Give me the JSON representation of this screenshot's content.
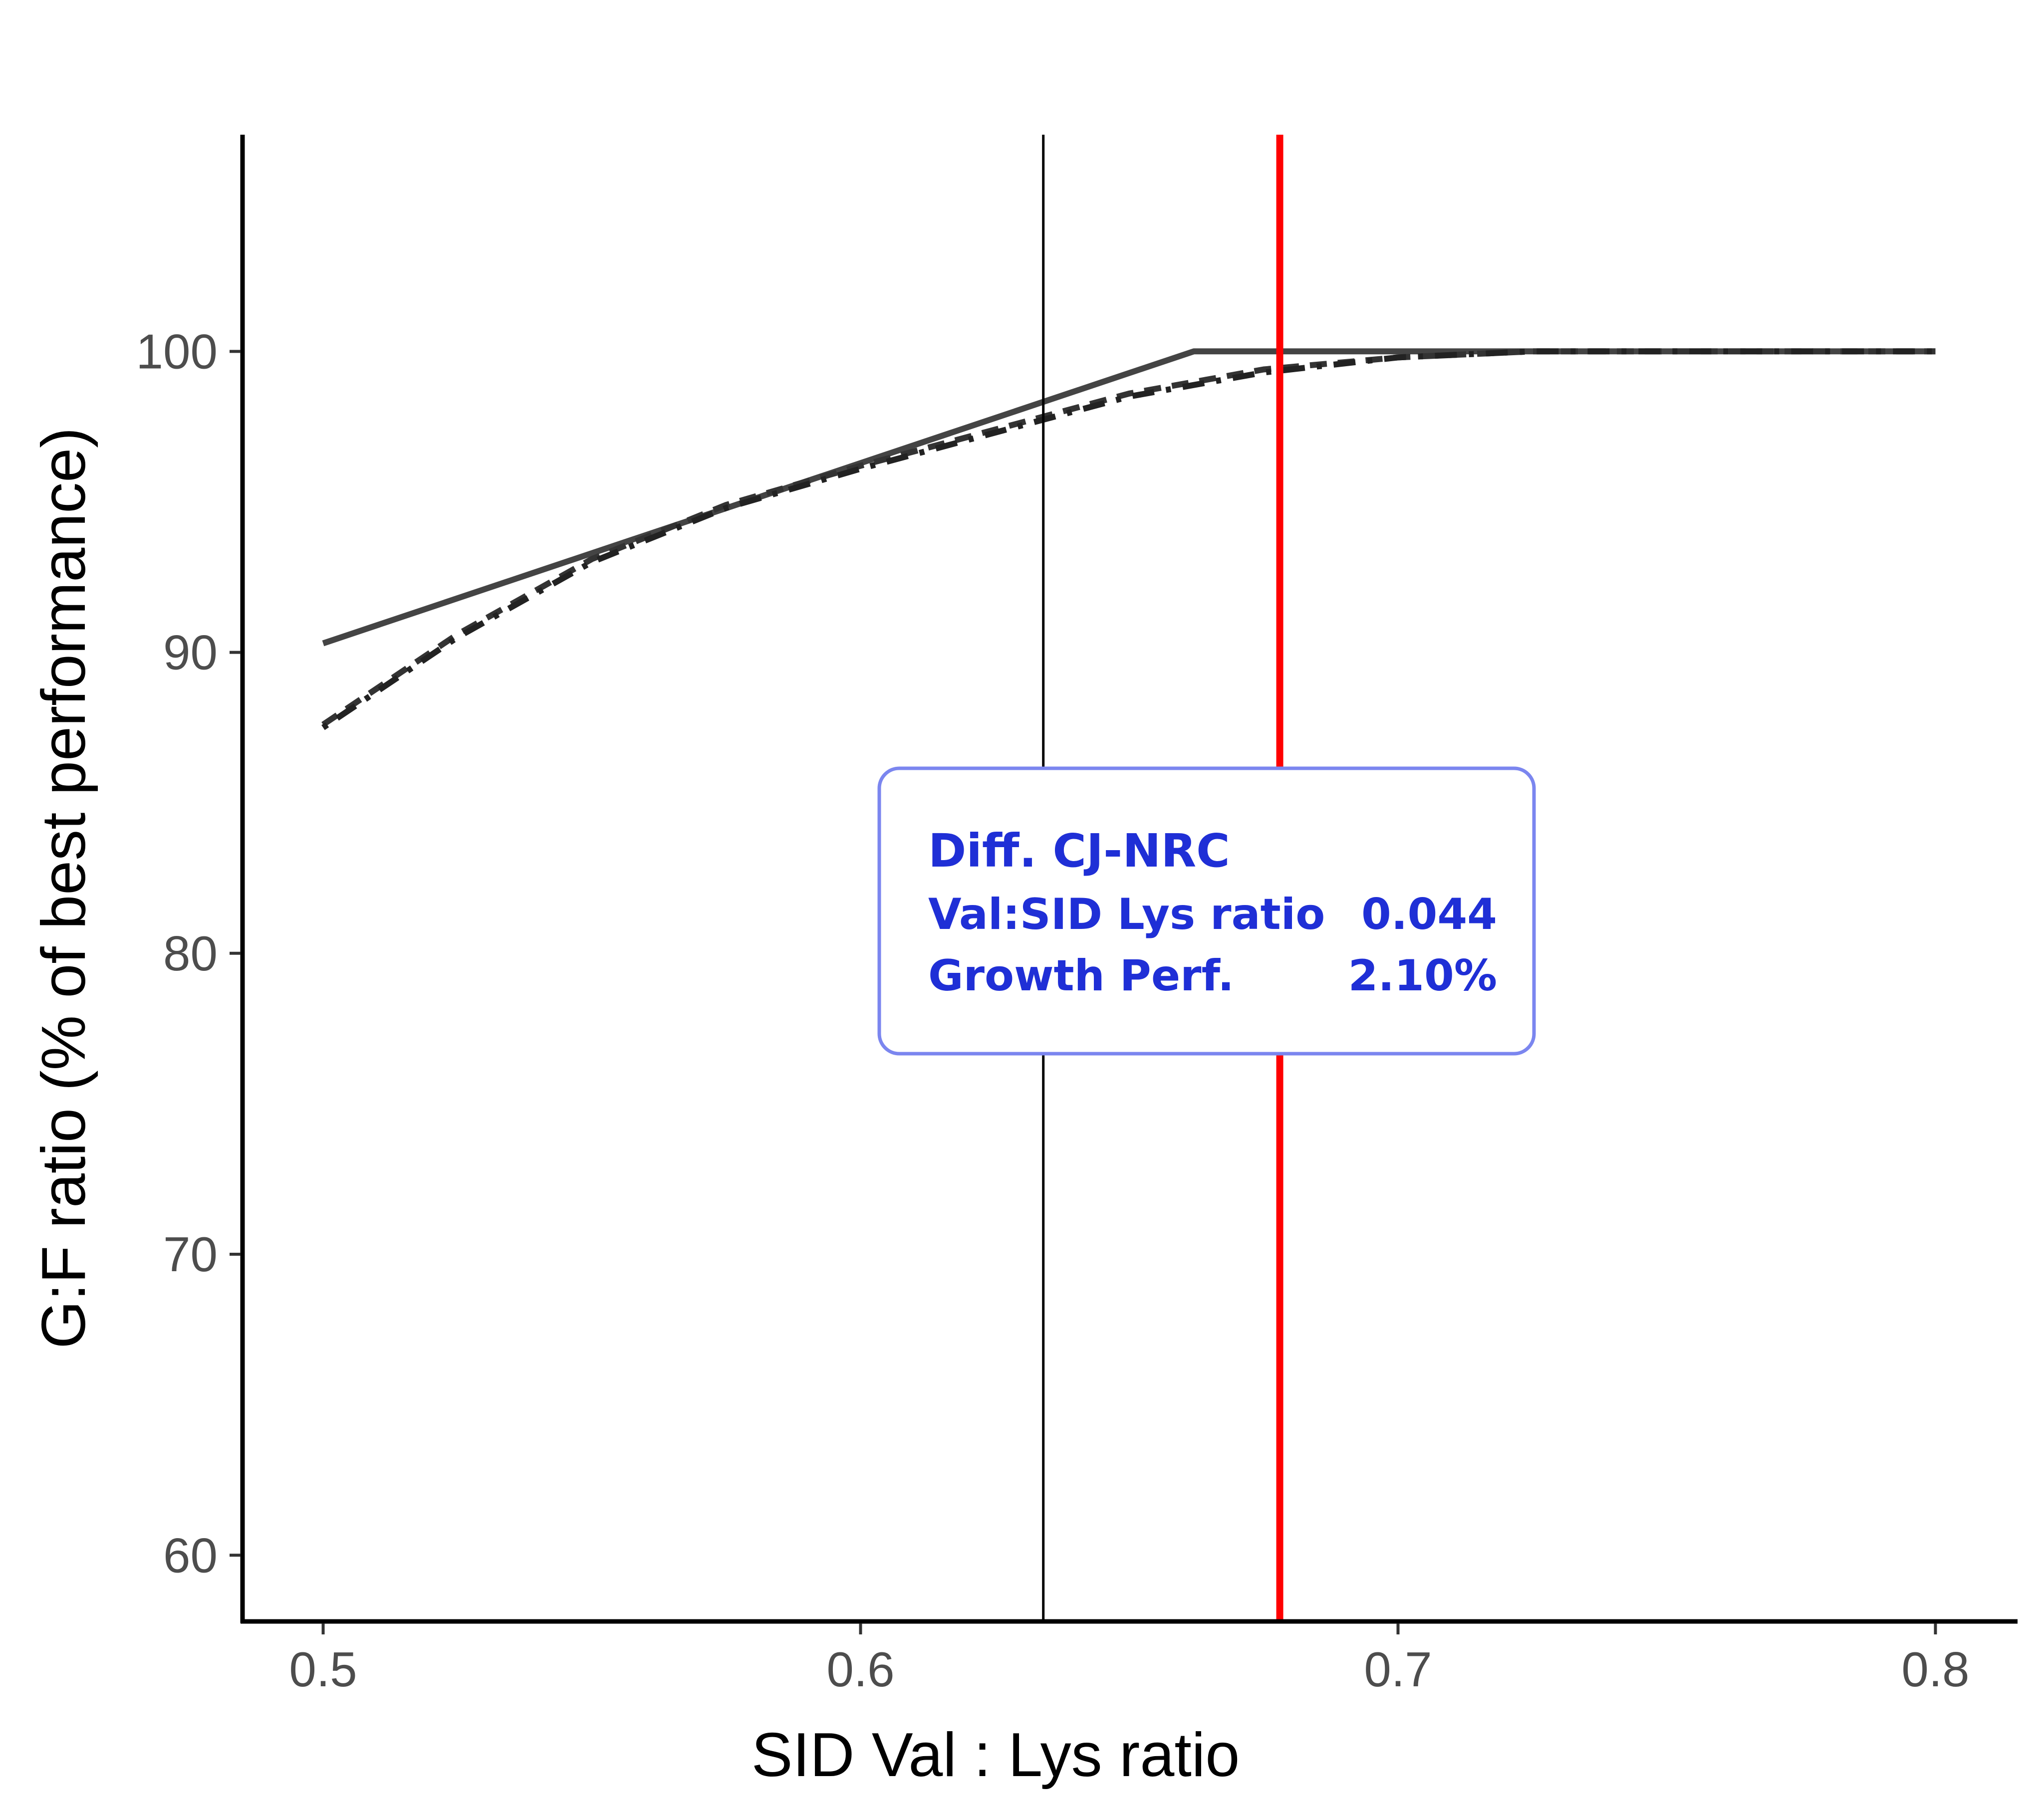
{
  "chart_data": {
    "type": "line",
    "title": "",
    "xlabel": "SID Val : Lys ratio",
    "ylabel": "G:F ratio (% of best performance)",
    "xlim": [
      0.485,
      0.815
    ],
    "ylim": [
      57.8,
      107.2
    ],
    "x_ticks": [
      0.5,
      0.6,
      0.7,
      0.8
    ],
    "x_tick_labels": [
      "0.5",
      "0.6",
      "0.7",
      "0.8"
    ],
    "y_ticks": [
      60,
      70,
      80,
      90,
      100
    ],
    "y_tick_labels": [
      "60",
      "70",
      "80",
      "90",
      "100"
    ],
    "grid": false,
    "legend": "none",
    "series": [
      {
        "style": "solid",
        "color": "#444444",
        "x": [
          0.5,
          0.662,
          0.8
        ],
        "y": [
          90.3,
          100.0,
          100.0
        ]
      },
      {
        "style": "dashed",
        "color": "#333333",
        "x": [
          0.5,
          0.525,
          0.55,
          0.575,
          0.6,
          0.625,
          0.65,
          0.675,
          0.7,
          0.725,
          0.75,
          0.8
        ],
        "y": [
          87.6,
          90.6,
          93.1,
          94.9,
          96.2,
          97.4,
          98.6,
          99.4,
          99.8,
          100.0,
          100.0,
          100.0
        ]
      },
      {
        "style": "dotdash",
        "color": "#222222",
        "x": [
          0.5,
          0.525,
          0.55,
          0.575,
          0.6,
          0.625,
          0.65,
          0.675,
          0.7,
          0.725,
          0.75,
          0.8
        ],
        "y": [
          87.5,
          90.5,
          93.0,
          94.8,
          96.1,
          97.3,
          98.5,
          99.3,
          99.8,
          100.0,
          100.0,
          100.0
        ]
      }
    ],
    "vlines": [
      {
        "x": 0.634,
        "color": "#000000",
        "role": "NRC"
      },
      {
        "x": 0.678,
        "color": "#ff0000",
        "role": "CJ"
      }
    ],
    "annotation": {
      "title": "Diff. CJ-NRC",
      "rows": [
        {
          "label": "Val:SID Lys ratio",
          "value": "0.044"
        },
        {
          "label": "Growth Perf.",
          "value": "2.10%"
        }
      ],
      "text_color": "#1f2fd6",
      "border_color": "#7b86ef"
    }
  }
}
